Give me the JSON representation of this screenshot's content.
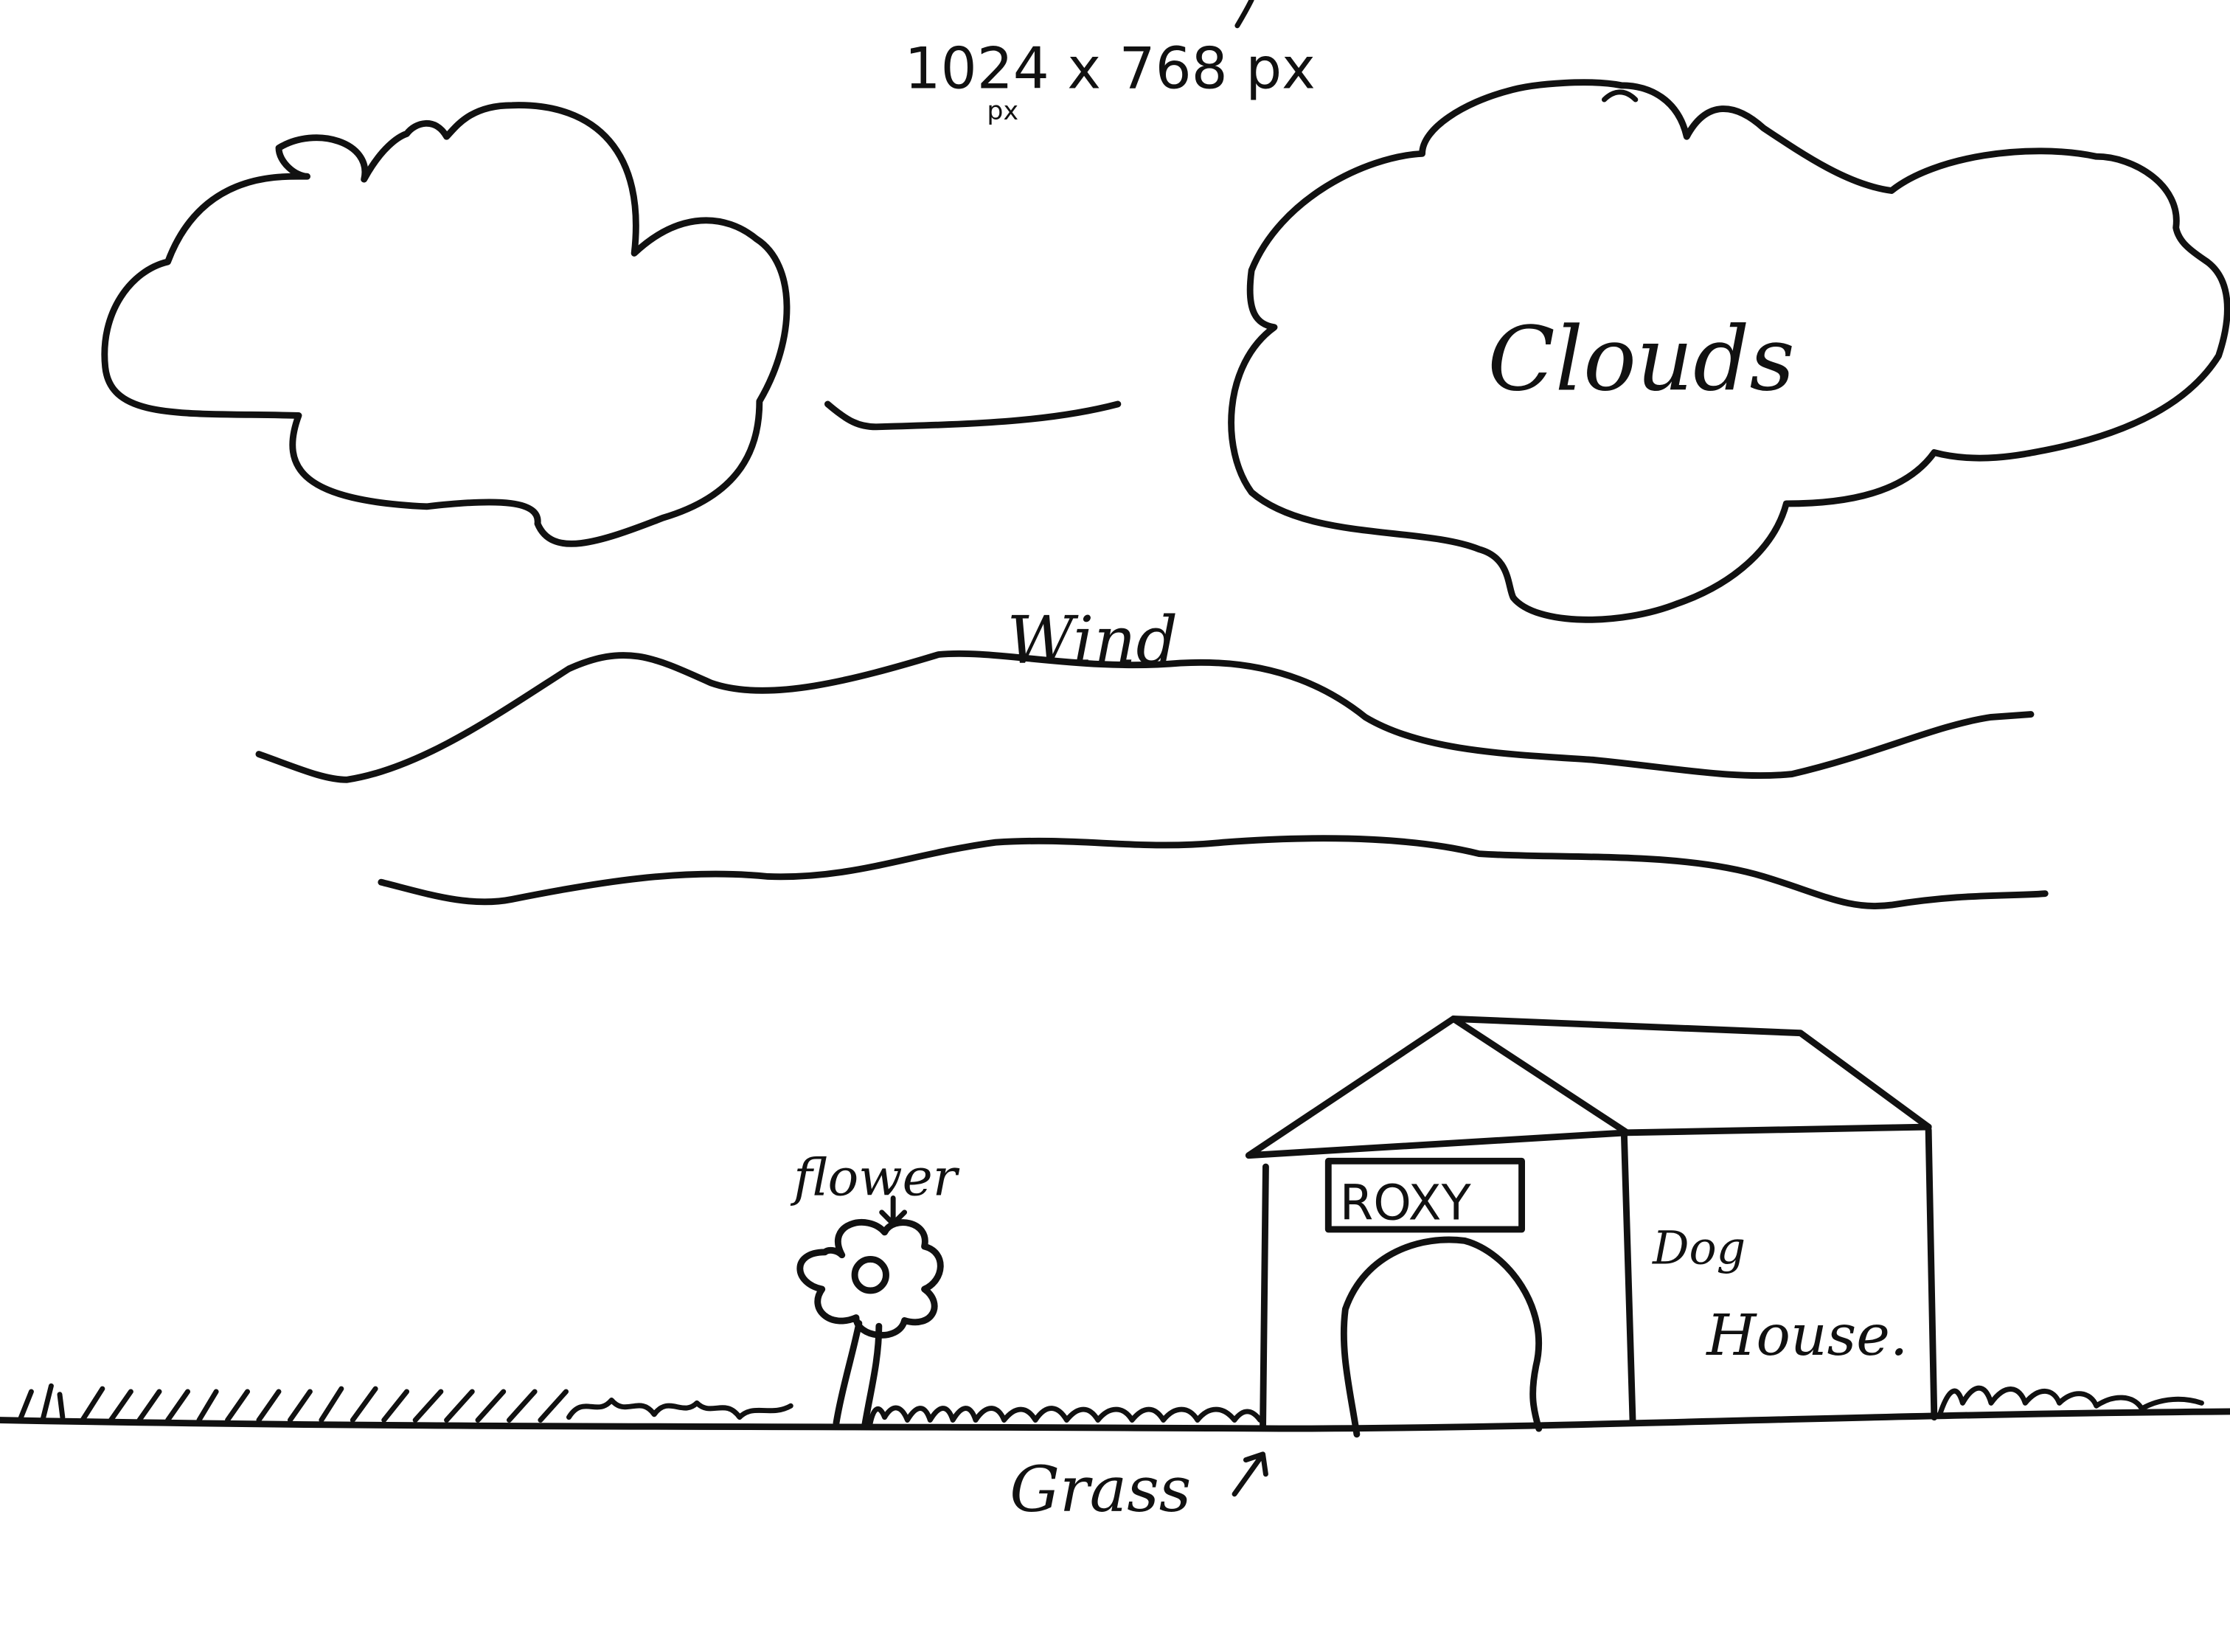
{
  "labels": {
    "dimensions": "1024 x 768 px",
    "dimensions_sub": "px",
    "clouds": "Clouds",
    "wind": "Wind",
    "flower": "flower",
    "sign": "ROXY",
    "dog": "Dog",
    "house": "House.",
    "grass": "Grass"
  },
  "colors": {
    "ink": "#111111",
    "paper": "#ffffff"
  }
}
